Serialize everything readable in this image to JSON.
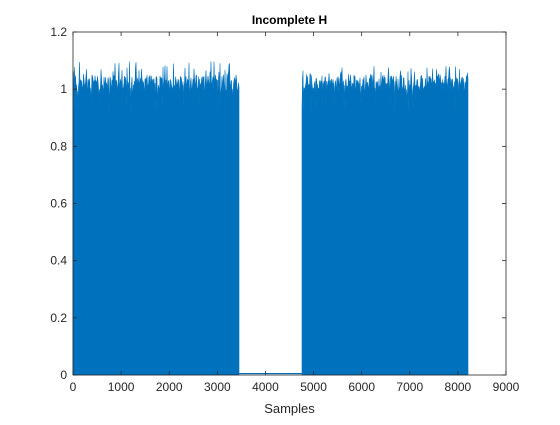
{
  "chart_data": {
    "type": "line",
    "title": "Incomplete H",
    "xlabel": "Samples",
    "ylabel": "",
    "xlim": [
      0,
      9000
    ],
    "ylim": [
      0,
      1.2
    ],
    "xticks": [
      "0",
      "1000",
      "2000",
      "3000",
      "4000",
      "5000",
      "6000",
      "7000",
      "8000",
      "9000"
    ],
    "yticks": [
      "0",
      "0.2",
      "0.4",
      "0.6",
      "0.8",
      "1",
      "1.2"
    ],
    "grid": false,
    "legend": "none",
    "series": [
      {
        "color": "#0072BD",
        "description": "dense oscillating samples between 0 and ~1.0 with peaks up to ~1.1",
        "segments": [
          {
            "x_start": 1,
            "x_end": 3440,
            "low": 0,
            "high_mean": 1.02,
            "high_max": 1.1
          },
          {
            "x_start": 3440,
            "x_end": 4760,
            "low": 0,
            "high_mean": 0.005,
            "high_max": 0.005
          },
          {
            "x_start": 4760,
            "x_end": 8192,
            "low": 0,
            "high_mean": 1.02,
            "high_max": 1.08
          }
        ]
      }
    ]
  }
}
